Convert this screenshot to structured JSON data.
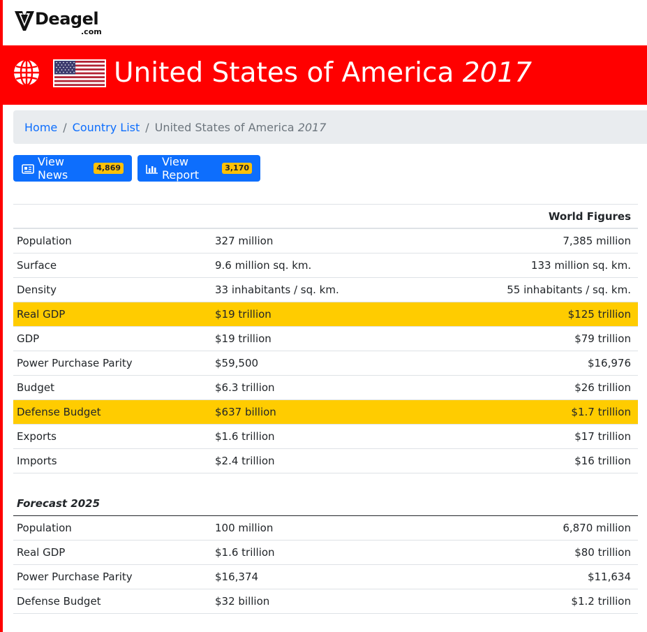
{
  "logo": {
    "name": "Deagel",
    "suffix": ".com"
  },
  "banner": {
    "country": "United States of America",
    "year": "2017",
    "icons": [
      "globe-icon",
      "us-flag-icon"
    ],
    "color": "#ff0000"
  },
  "breadcrumb": {
    "home": "Home",
    "sep": "/",
    "country_list": "Country List",
    "current_name": "United States of America",
    "current_year": "2017"
  },
  "buttons": {
    "news": {
      "label": "View News",
      "count": "4,869",
      "icon": "newspaper-icon"
    },
    "report": {
      "label": "View Report",
      "count": "3,170",
      "icon": "bar-chart-icon"
    }
  },
  "figures": {
    "world_header": "World Figures",
    "rows": [
      {
        "label": "Population",
        "value": "327 million",
        "world": "7,385 million",
        "highlight": false
      },
      {
        "label": "Surface",
        "value": "9.6 million sq. km.",
        "world": "133 million sq. km.",
        "highlight": false
      },
      {
        "label": "Density",
        "value": "33 inhabitants / sq. km.",
        "world": "55 inhabitants / sq. km.",
        "highlight": false
      },
      {
        "label": "Real GDP",
        "value": "$19 trillion",
        "world": "$125 trillion",
        "highlight": true
      },
      {
        "label": "GDP",
        "value": "$19 trillion",
        "world": "$79 trillion",
        "highlight": false
      },
      {
        "label": "Power Purchase Parity",
        "value": "$59,500",
        "world": "$16,976",
        "highlight": false
      },
      {
        "label": "Budget",
        "value": "$6.3 trillion",
        "world": "$26 trillion",
        "highlight": false
      },
      {
        "label": "Defense Budget",
        "value": "$637 billion",
        "world": "$1.7 trillion",
        "highlight": true
      },
      {
        "label": "Exports",
        "value": "$1.6 trillion",
        "world": "$17 trillion",
        "highlight": false
      },
      {
        "label": "Imports",
        "value": "$2.4 trillion",
        "world": "$16 trillion",
        "highlight": false
      }
    ]
  },
  "forecast": {
    "title": "Forecast 2025",
    "rows": [
      {
        "label": "Population",
        "value": "100 million",
        "world": "6,870 million"
      },
      {
        "label": "Real GDP",
        "value": "$1.6 trillion",
        "world": "$80 trillion"
      },
      {
        "label": "Power Purchase Parity",
        "value": "$16,374",
        "world": "$11,634"
      },
      {
        "label": "Defense Budget",
        "value": "$32 billion",
        "world": "$1.2 trillion"
      }
    ]
  },
  "colors": {
    "accent_red": "#ff0000",
    "link_blue": "#0d6efd",
    "highlight_yellow": "#ffcc00",
    "badge_yellow": "#ffc107"
  }
}
